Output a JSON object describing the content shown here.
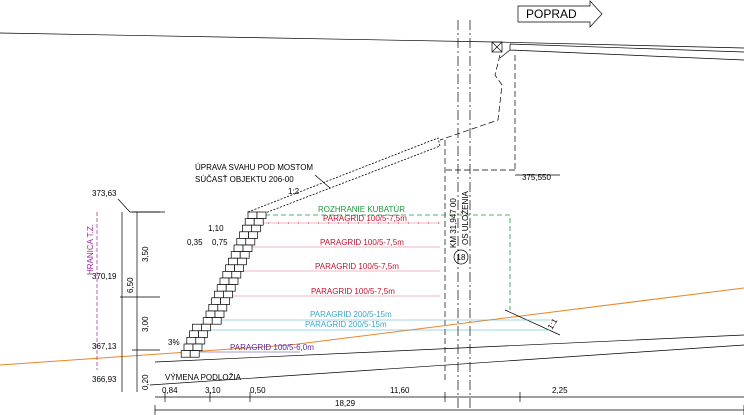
{
  "direction": "POPRAD",
  "slope_note": [
    "ÚPRAVA SVAHU POD MOSTOM",
    "SÚČASŤ OBJEKTU 206-00"
  ],
  "slope_ratio": "1:2",
  "slope_ratio_right": "1:1",
  "crossfall": "3%",
  "elevations": {
    "pier": "375,550",
    "wall_top": "373,63",
    "mid": "370,19",
    "wall_base": "367,13",
    "subbase": "366,93"
  },
  "boundary": "HRANICA T.Z.",
  "volume_boundary": "ROZHRANIE KUBATÚR",
  "geogrids": [
    "PARAGRID 100/5-7,5m",
    "PARAGRID 100/5-7,5m",
    "PARAGRID 100/5-7,5m",
    "PARAGRID 100/5-7,5m",
    "PARAGRID 200/5-15m",
    "PARAGRID 200/5-15m",
    "PARAGRID 100/5-6,0m"
  ],
  "axis": {
    "station": "KM 31,947 00",
    "label": "OS ULOŽENIA",
    "number": "18"
  },
  "subgrade": "VÝMENA PODLOŽIA",
  "vertical_dims": [
    "3,50",
    "6,50",
    "3,00",
    "0,20"
  ],
  "block_dims": [
    "1,10",
    "0,35",
    "0,75"
  ],
  "horizontal_dims": [
    "0,84",
    "3,10",
    "0,50",
    "11,60",
    "2,25"
  ],
  "total_width": "18,29"
}
